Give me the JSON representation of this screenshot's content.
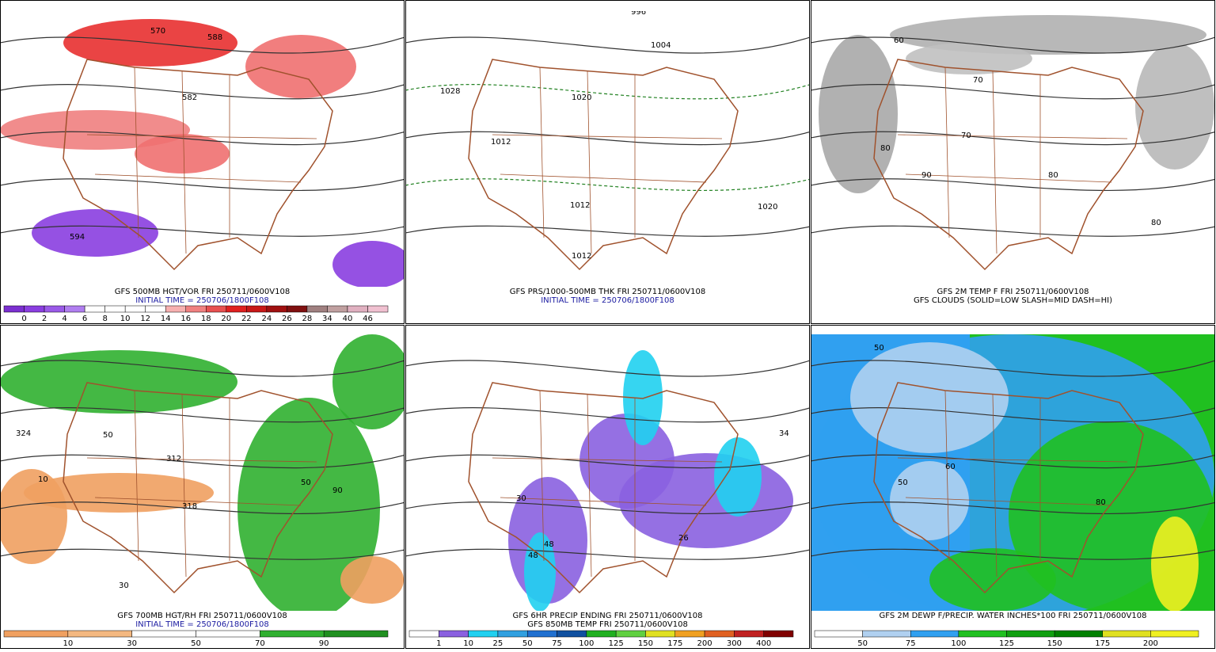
{
  "panels": [
    {
      "captions": [
        {
          "text": "GFS 500MB HGT/VOR FRI 250711/0600V108",
          "color": "#000000"
        },
        {
          "text": "INITIAL TIME = 250706/1800F108",
          "color": "#1a1aa0"
        }
      ],
      "map_labels": [
        "570",
        "582",
        "594",
        "588"
      ],
      "colorbar": {
        "colors": [
          "#7b2fd0",
          "#8a3ee0",
          "#9a5ae8",
          "#b07ef0",
          "#ffffff",
          "#ffffff",
          "#ffffff",
          "#ffffff",
          "#f7b0b0",
          "#f08080",
          "#e85050",
          "#e02020",
          "#c81818",
          "#a01010",
          "#801010",
          "#a08080",
          "#c0a0a0",
          "#e0b0c0",
          "#f0c0d0"
        ],
        "labels": [
          "0",
          "2",
          "4",
          "6",
          "8",
          "10",
          "12",
          "14",
          "16",
          "18",
          "20",
          "22",
          "24",
          "26",
          "28",
          "34",
          "40",
          "46"
        ]
      }
    },
    {
      "captions": [
        {
          "text": "GFS PRS/1000-500MB THK FRI 250711/0600V108",
          "color": "#000000"
        },
        {
          "text": "INITIAL TIME = 250706/1800F108",
          "color": "#1a1aa0"
        }
      ],
      "map_labels": [
        "1028",
        "1020",
        "1004",
        "1012",
        "1012",
        "1020",
        "1012",
        "996"
      ],
      "colorbar": null
    },
    {
      "captions": [
        {
          "text": "GFS 2M TEMP F FRI 250711/0600V108",
          "color": "#000000"
        },
        {
          "text": "GFS CLOUDS (SOLID=LOW SLASH=MID DASH=HI)",
          "color": "#000000"
        }
      ],
      "map_labels": [
        "80",
        "70",
        "60",
        "90",
        "80",
        "70",
        "80"
      ],
      "colorbar": null
    },
    {
      "captions": [
        {
          "text": "GFS 700MB HGT/RH FRI 250711/0600V108",
          "color": "#000000"
        },
        {
          "text": "INITIAL TIME = 250706/1800F108",
          "color": "#1a1aa0"
        }
      ],
      "map_labels": [
        "324",
        "312",
        "318",
        "50",
        "10",
        "90",
        "50",
        "30"
      ],
      "colorbar": {
        "colors": [
          "#f0a060",
          "#f4b880",
          "#ffffff",
          "#ffffff",
          "#30b030",
          "#209020"
        ],
        "labels": [
          "10",
          "30",
          "50",
          "70",
          "90"
        ]
      }
    },
    {
      "captions": [
        {
          "text": "GFS 6HR PRECIP ENDING FRI 250711/0600V108",
          "color": "#000000"
        },
        {
          "text": "GFS 850MB TEMP FRI 250711/0600V108",
          "color": "#000000"
        }
      ],
      "map_labels": [
        "34",
        "48",
        "48",
        "26",
        "30"
      ],
      "colorbar": {
        "colors": [
          "#ffffff",
          "#8a60e0",
          "#20d0f0",
          "#30a0e0",
          "#2070d0",
          "#1050a0",
          "#20b020",
          "#60d040",
          "#e0e020",
          "#f0a020",
          "#e06020",
          "#c02020",
          "#800000"
        ],
        "labels": [
          "1",
          "10",
          "25",
          "50",
          "75",
          "100",
          "125",
          "150",
          "175",
          "200",
          "300",
          "400"
        ]
      }
    },
    {
      "captions": [
        {
          "text": "GFS 2M DEWP F/PRECIP. WATER INCHES*100 FRI 250711/0600V108",
          "color": "#000000"
        }
      ],
      "map_labels": [
        "50",
        "50",
        "80",
        "60"
      ],
      "colorbar": {
        "colors": [
          "#ffffff",
          "#b0d0f0",
          "#30a0f0",
          "#20c020",
          "#10a010",
          "#008000",
          "#e0e020",
          "#f0f020"
        ],
        "labels": [
          "50",
          "75",
          "100",
          "125",
          "150",
          "175",
          "200"
        ]
      }
    }
  ]
}
